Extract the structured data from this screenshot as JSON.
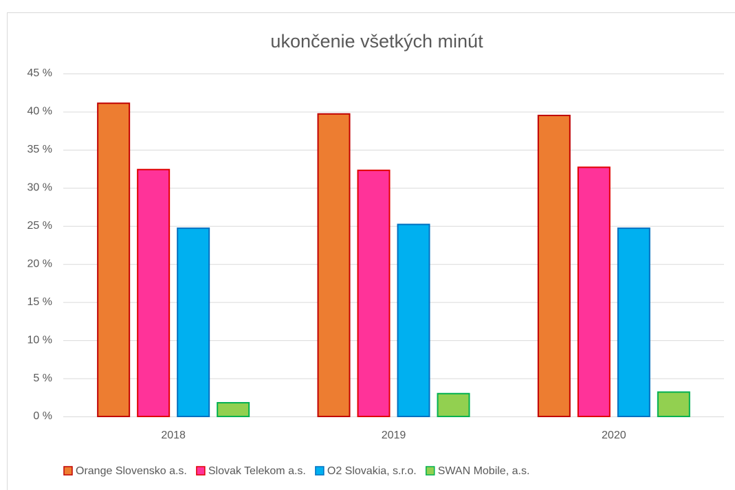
{
  "chart_data": {
    "type": "bar",
    "title": "ukončenie všetkých minút",
    "categories": [
      "2018",
      "2019",
      "2020"
    ],
    "series": [
      {
        "name": "Orange Slovensko a.s.",
        "color": "#ed7d31",
        "edge_color": "#c00000",
        "values": [
          41.1,
          39.7,
          39.5
        ]
      },
      {
        "name": "Slovak Telekom a.s.",
        "color": "#ff3399",
        "edge_color": "#e00000",
        "values": [
          32.4,
          32.3,
          32.7
        ]
      },
      {
        "name": "O2 Slovakia, s.r.o.",
        "color": "#00b0f0",
        "edge_color": "#0070c0",
        "values": [
          24.7,
          25.2,
          24.7
        ]
      },
      {
        "name": "SWAN Mobile, a.s.",
        "color": "#92d050",
        "edge_color": "#00b050",
        "values": [
          1.8,
          3.0,
          3.2
        ]
      }
    ],
    "ylim": [
      0,
      45
    ],
    "yticks": [
      {
        "value": 0,
        "label": "0 %"
      },
      {
        "value": 5,
        "label": "5 %"
      },
      {
        "value": 10,
        "label": "10 %"
      },
      {
        "value": 15,
        "label": "15 %"
      },
      {
        "value": 20,
        "label": "20 %"
      },
      {
        "value": 25,
        "label": "25 %"
      },
      {
        "value": 30,
        "label": "30 %"
      },
      {
        "value": 35,
        "label": "35 %"
      },
      {
        "value": 40,
        "label": "40 %"
      },
      {
        "value": 45,
        "label": "45 %"
      }
    ],
    "grid": true,
    "legend": "bottom"
  }
}
